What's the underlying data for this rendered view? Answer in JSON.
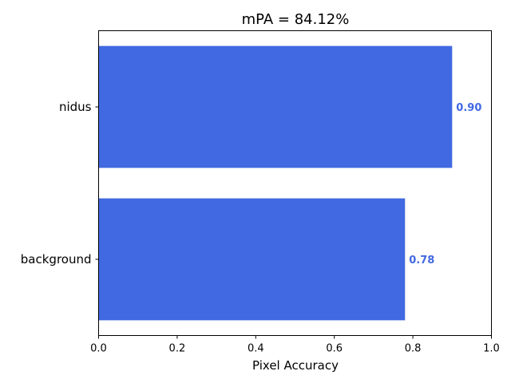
{
  "chart_data": {
    "type": "bar",
    "orientation": "horizontal",
    "title": "mPA = 84.12%",
    "xlabel": "Pixel Accuracy",
    "ylabel": "",
    "categories": [
      "background",
      "nidus"
    ],
    "values": [
      0.78,
      0.9
    ],
    "value_labels": [
      "0.78",
      "0.90"
    ],
    "xlim": [
      0.0,
      1.0
    ],
    "xticks": [
      "0.0",
      "0.2",
      "0.4",
      "0.6",
      "0.8",
      "1.0"
    ],
    "grid": false,
    "bar_color": "#4169e1",
    "label_color": "#4169e1"
  }
}
